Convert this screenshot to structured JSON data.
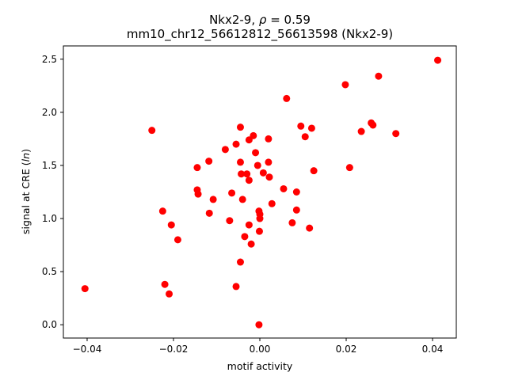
{
  "chart_data": {
    "type": "scatter",
    "title": "Nkx2-9, ρ = 0.59",
    "title_name": "Nkx2-9, ",
    "title_rho": "ρ",
    "title_eq": " = 0.59",
    "subtitle": "mm10_chr12_56612812_56613598 (Nkx2-9)",
    "xlabel": "motif activity",
    "ylabel_main": "signal at CRE (",
    "ylabel_var": "ln",
    "ylabel_end": ")",
    "xlim": [
      -0.0455,
      0.0455
    ],
    "ylim": [
      -0.125,
      2.625
    ],
    "x_ticks": [
      -0.04,
      -0.02,
      0.0,
      0.02,
      0.04
    ],
    "x_tick_labels": [
      "−0.04",
      "−0.02",
      "0.00",
      "0.02",
      "0.04"
    ],
    "y_ticks": [
      0.0,
      0.5,
      1.0,
      1.5,
      2.0,
      2.5
    ],
    "y_tick_labels": [
      "0.0",
      "0.5",
      "1.0",
      "1.5",
      "2.0",
      "2.5"
    ],
    "grid": false,
    "legend": "none",
    "marker_color": "#ff0000",
    "points": [
      {
        "x": -0.0405,
        "y": 0.34
      },
      {
        "x": -0.025,
        "y": 1.83
      },
      {
        "x": -0.0225,
        "y": 1.07
      },
      {
        "x": -0.022,
        "y": 0.38
      },
      {
        "x": -0.021,
        "y": 0.29
      },
      {
        "x": -0.0205,
        "y": 0.94
      },
      {
        "x": -0.019,
        "y": 0.8
      },
      {
        "x": -0.0145,
        "y": 1.48
      },
      {
        "x": -0.0145,
        "y": 1.27
      },
      {
        "x": -0.0143,
        "y": 1.23
      },
      {
        "x": -0.0118,
        "y": 1.54
      },
      {
        "x": -0.0117,
        "y": 1.05
      },
      {
        "x": -0.0108,
        "y": 1.18
      },
      {
        "x": -0.008,
        "y": 1.65
      },
      {
        "x": -0.007,
        "y": 0.98
      },
      {
        "x": -0.0065,
        "y": 1.24
      },
      {
        "x": -0.0055,
        "y": 1.7
      },
      {
        "x": -0.0055,
        "y": 0.36
      },
      {
        "x": -0.0045,
        "y": 1.86
      },
      {
        "x": -0.0045,
        "y": 1.53
      },
      {
        "x": -0.0043,
        "y": 1.42
      },
      {
        "x": -0.004,
        "y": 1.18
      },
      {
        "x": -0.0045,
        "y": 0.59
      },
      {
        "x": -0.0035,
        "y": 0.83
      },
      {
        "x": -0.003,
        "y": 1.42
      },
      {
        "x": -0.0025,
        "y": 1.74
      },
      {
        "x": -0.0025,
        "y": 1.36
      },
      {
        "x": -0.0025,
        "y": 0.94
      },
      {
        "x": -0.0015,
        "y": 1.78
      },
      {
        "x": -0.001,
        "y": 1.62
      },
      {
        "x": -0.002,
        "y": 0.76
      },
      {
        "x": -0.0005,
        "y": 1.5
      },
      {
        "x": -0.0002,
        "y": 1.07
      },
      {
        "x": 0.0,
        "y": 1.04
      },
      {
        "x": 0.0,
        "y": 1.0
      },
      {
        "x": -0.0001,
        "y": 0.88
      },
      {
        "x": -0.0002,
        "y": 0.0
      },
      {
        "x": 0.0008,
        "y": 1.43
      },
      {
        "x": 0.002,
        "y": 1.75
      },
      {
        "x": 0.002,
        "y": 1.53
      },
      {
        "x": 0.0022,
        "y": 1.39
      },
      {
        "x": 0.0028,
        "y": 1.14
      },
      {
        "x": 0.0055,
        "y": 1.28
      },
      {
        "x": 0.0062,
        "y": 2.13
      },
      {
        "x": 0.0075,
        "y": 0.96
      },
      {
        "x": 0.0085,
        "y": 1.25
      },
      {
        "x": 0.0085,
        "y": 1.08
      },
      {
        "x": 0.0095,
        "y": 1.87
      },
      {
        "x": 0.0105,
        "y": 1.77
      },
      {
        "x": 0.0115,
        "y": 0.91
      },
      {
        "x": 0.012,
        "y": 1.85
      },
      {
        "x": 0.0125,
        "y": 1.45
      },
      {
        "x": 0.0198,
        "y": 2.26
      },
      {
        "x": 0.0208,
        "y": 1.48
      },
      {
        "x": 0.0235,
        "y": 1.82
      },
      {
        "x": 0.0258,
        "y": 1.9
      },
      {
        "x": 0.0262,
        "y": 1.88
      },
      {
        "x": 0.0275,
        "y": 2.34
      },
      {
        "x": 0.0315,
        "y": 1.8
      },
      {
        "x": 0.0412,
        "y": 2.49
      }
    ]
  }
}
